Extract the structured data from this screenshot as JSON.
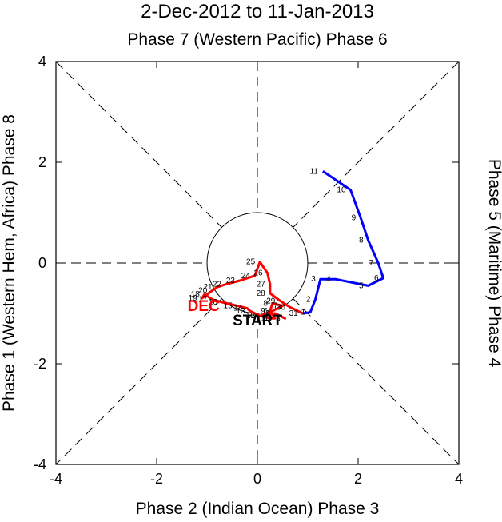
{
  "chart_data": {
    "type": "line",
    "title": "2-Dec-2012 to 11-Jan-2013",
    "top_label": "Phase 7 (Western Pacific) Phase 6",
    "bottom_label": "Phase 2 (Indian Ocean) Phase 3",
    "left_label": "Phase 1 (Western Hem, Africa) Phase 8",
    "right_label": "Phase 5 (Maritime) Phase 4",
    "xlim": [
      -4,
      4
    ],
    "ylim": [
      -4,
      4
    ],
    "xticks": [
      -4,
      -2,
      0,
      2,
      4
    ],
    "yticks": [
      -4,
      -2,
      0,
      2,
      4
    ],
    "tick_labels_x": [
      "-4",
      "-2",
      "0",
      "2",
      "4"
    ],
    "tick_labels_y": [
      "-4",
      "-2",
      "0",
      "2",
      "4"
    ],
    "unit_circle_radius": 1,
    "start_label": "START",
    "series": [
      {
        "name": "December",
        "month_label": "DEC",
        "color": "#ff0000",
        "points": [
          {
            "day": "2",
            "x": 0.35,
            "y": -1.0
          },
          {
            "day": "3",
            "x": 0.55,
            "y": -1.1
          },
          {
            "day": "4",
            "x": 0.35,
            "y": -1.0
          },
          {
            "day": "5",
            "x": 0.05,
            "y": -1.05
          },
          {
            "day": "6",
            "x": 0.3,
            "y": -0.95
          },
          {
            "day": "7",
            "x": 0.5,
            "y": -0.85
          },
          {
            "day": "8",
            "x": 0.3,
            "y": -0.8
          },
          {
            "day": "9",
            "x": 0.25,
            "y": -0.95
          },
          {
            "day": "10",
            "x": 0.35,
            "y": -1.1
          },
          {
            "day": "11",
            "x": 0.25,
            "y": -1.1
          },
          {
            "day": "12",
            "x": 0.05,
            "y": -1.05
          },
          {
            "day": "13",
            "x": -0.15,
            "y": -0.95
          },
          {
            "day": "14",
            "x": -0.2,
            "y": -0.9
          },
          {
            "day": "15",
            "x": -0.4,
            "y": -0.85
          },
          {
            "day": "16",
            "x": -0.7,
            "y": -0.78
          },
          {
            "day": "17",
            "x": -0.9,
            "y": -0.72
          },
          {
            "day": "18",
            "x": -1.05,
            "y": -0.62
          },
          {
            "day": "19",
            "x": -1.1,
            "y": -0.7
          },
          {
            "day": "20",
            "x": -0.9,
            "y": -0.55
          },
          {
            "day": "21",
            "x": -0.8,
            "y": -0.48
          },
          {
            "day": "22",
            "x": -0.62,
            "y": -0.42
          },
          {
            "day": "23",
            "x": -0.35,
            "y": -0.35
          },
          {
            "day": "24",
            "x": -0.05,
            "y": -0.25
          },
          {
            "day": "25",
            "x": 0.05,
            "y": 0.02
          },
          {
            "day": "26",
            "x": 0.2,
            "y": -0.2
          },
          {
            "day": "27",
            "x": 0.25,
            "y": -0.42
          },
          {
            "day": "28",
            "x": 0.25,
            "y": -0.6
          },
          {
            "day": "29",
            "x": 0.45,
            "y": -0.75
          },
          {
            "day": "30",
            "x": 0.65,
            "y": -0.88
          },
          {
            "day": "31",
            "x": 0.9,
            "y": -1.0
          }
        ]
      },
      {
        "name": "January",
        "month_label": "",
        "color": "#0000ff",
        "points": [
          {
            "day": "1",
            "x": 1.05,
            "y": -0.98
          },
          {
            "day": "2",
            "x": 1.15,
            "y": -0.72
          },
          {
            "day": "3",
            "x": 1.25,
            "y": -0.32
          },
          {
            "day": "4",
            "x": 1.55,
            "y": -0.32
          },
          {
            "day": "5",
            "x": 2.2,
            "y": -0.45
          },
          {
            "day": "6",
            "x": 2.5,
            "y": -0.3
          },
          {
            "day": "7",
            "x": 2.4,
            "y": 0.0
          },
          {
            "day": "8",
            "x": 2.2,
            "y": 0.45
          },
          {
            "day": "9",
            "x": 2.05,
            "y": 0.9
          },
          {
            "day": "10",
            "x": 1.85,
            "y": 1.45
          },
          {
            "day": "11",
            "x": 1.3,
            "y": 1.82
          }
        ]
      }
    ]
  }
}
